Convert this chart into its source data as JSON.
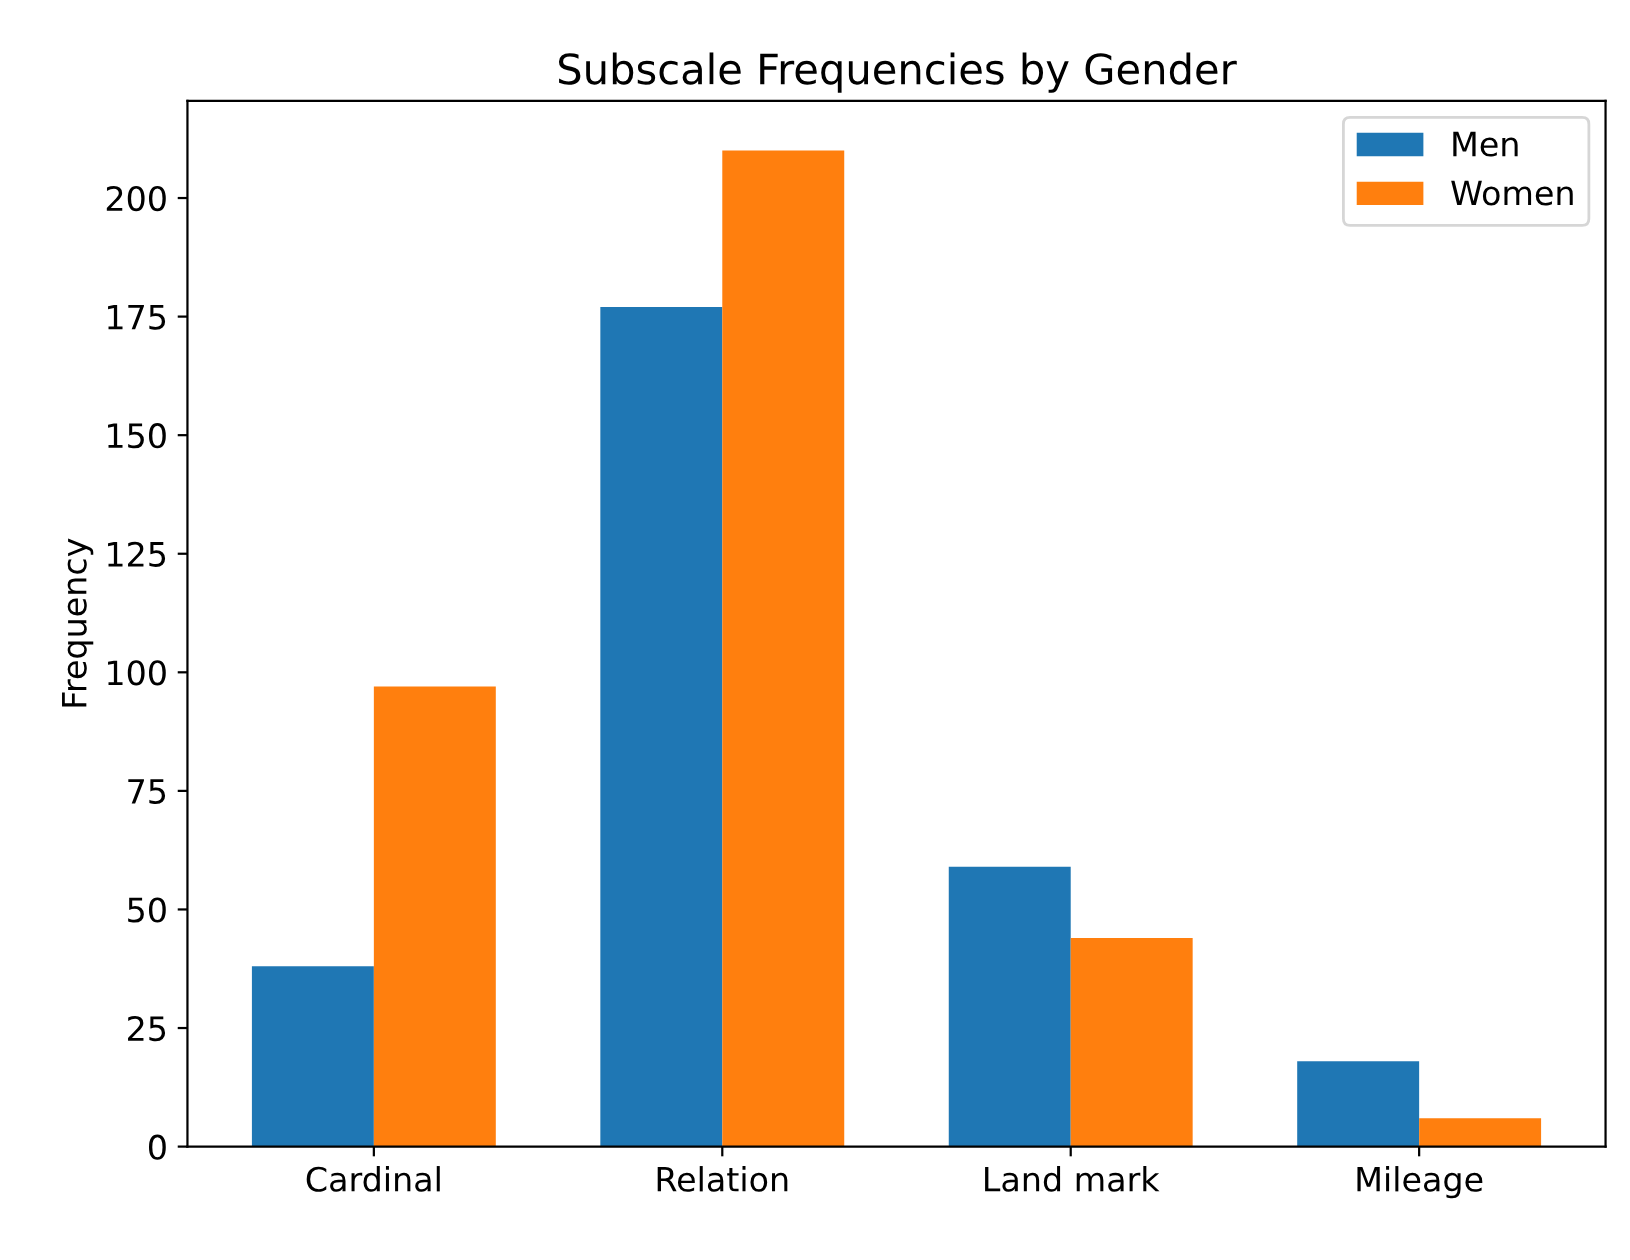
{
  "chart_data": {
    "type": "bar",
    "title": "Subscale Frequencies by Gender",
    "ylabel": "Frequency",
    "categories": [
      "Cardinal",
      "Relation",
      "Land mark",
      "Mileage"
    ],
    "series": [
      {
        "name": "Men",
        "color": "#1f77b4",
        "values": [
          38,
          177,
          59,
          18
        ]
      },
      {
        "name": "Women",
        "color": "#ff7f0e",
        "values": [
          97,
          210,
          44,
          6
        ]
      }
    ],
    "ylim": [
      0,
      220.5
    ],
    "yticks": [
      0,
      25,
      50,
      75,
      100,
      125,
      150,
      175,
      200
    ],
    "grid": false,
    "legend": "top right"
  }
}
